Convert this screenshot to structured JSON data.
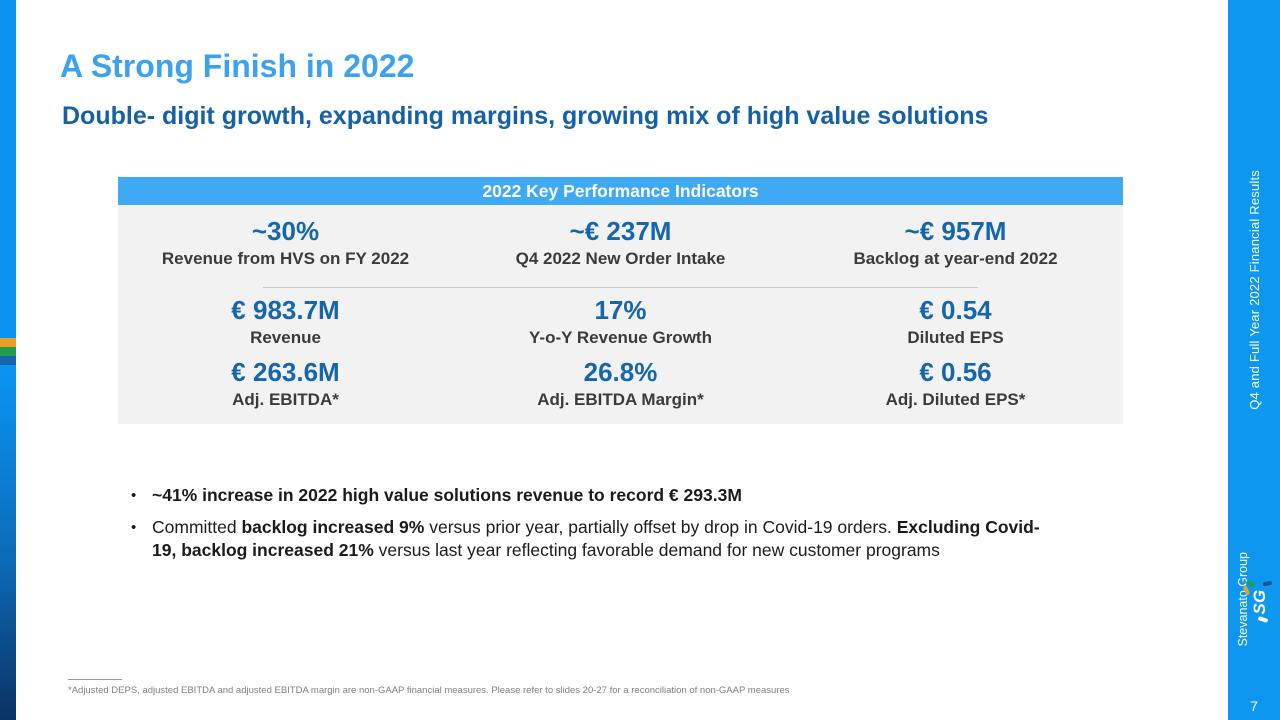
{
  "slide": {
    "title": "A Strong Finish in 2022",
    "subtitle": "Double- digit growth, expanding margins, growing mix of high value solutions",
    "kpi_panel": {
      "header": "2022 Key Performance Indicators",
      "items": [
        {
          "value": "~30%",
          "label": "Revenue from HVS on FY 2022"
        },
        {
          "value": "~€ 237M",
          "label": "Q4 2022 New Order Intake"
        },
        {
          "value": "~€ 957M",
          "label": "Backlog at year-end 2022"
        },
        {
          "value": "€ 983.7M",
          "label": "Revenue"
        },
        {
          "value": "17%",
          "label": "Y-o-Y Revenue Growth"
        },
        {
          "value": "€ 0.54",
          "label": "Diluted EPS"
        },
        {
          "value": "€ 263.6M",
          "label": "Adj. EBITDA*"
        },
        {
          "value": "26.8%",
          "label": "Adj. EBITDA Margin*"
        },
        {
          "value": "€ 0.56",
          "label": "Adj. Diluted EPS*"
        }
      ]
    },
    "bullets": {
      "marker": "•",
      "item1": {
        "seg0": "~41% increase in 2022 high value solutions revenue to record € 293.3M"
      },
      "item2": {
        "seg0": "Committed ",
        "seg1": "backlog increased 9%",
        "seg2": " versus prior year, partially offset by drop in Covid-19 orders. ",
        "seg3": "Excluding Covid-19, backlog increased 21%",
        "seg4": " versus last year reflecting favorable demand for new customer programs"
      }
    },
    "footnote": "*Adjusted DEPS, adjusted EBITDA and adjusted EBITDA margin are non-GAAP financial measures. Please refer to slides 20-27 for a reconciliation of non-GAAP measures",
    "sidebar": {
      "vertical_text": "Q4 and Full Year 2022 Financial Results",
      "logo_mark": "SG",
      "logo_name": "Stevanato Group",
      "page_number": "7"
    },
    "colors": {
      "title_blue": "#3da2ee",
      "subtitle_blue": "#1661a5",
      "kpi_header_blue": "#3fa9f3",
      "kpi_value_blue": "#1566ac",
      "kpi_body_gray": "#f2f2f2",
      "sidebar_blue": "#0e97f0",
      "stripe_blue": "#0994f2",
      "stripe_dark_navy": "#0a3263",
      "accent_orange": "#e9a125",
      "accent_green": "#219e4b",
      "accent_navy": "#1566ac"
    }
  }
}
